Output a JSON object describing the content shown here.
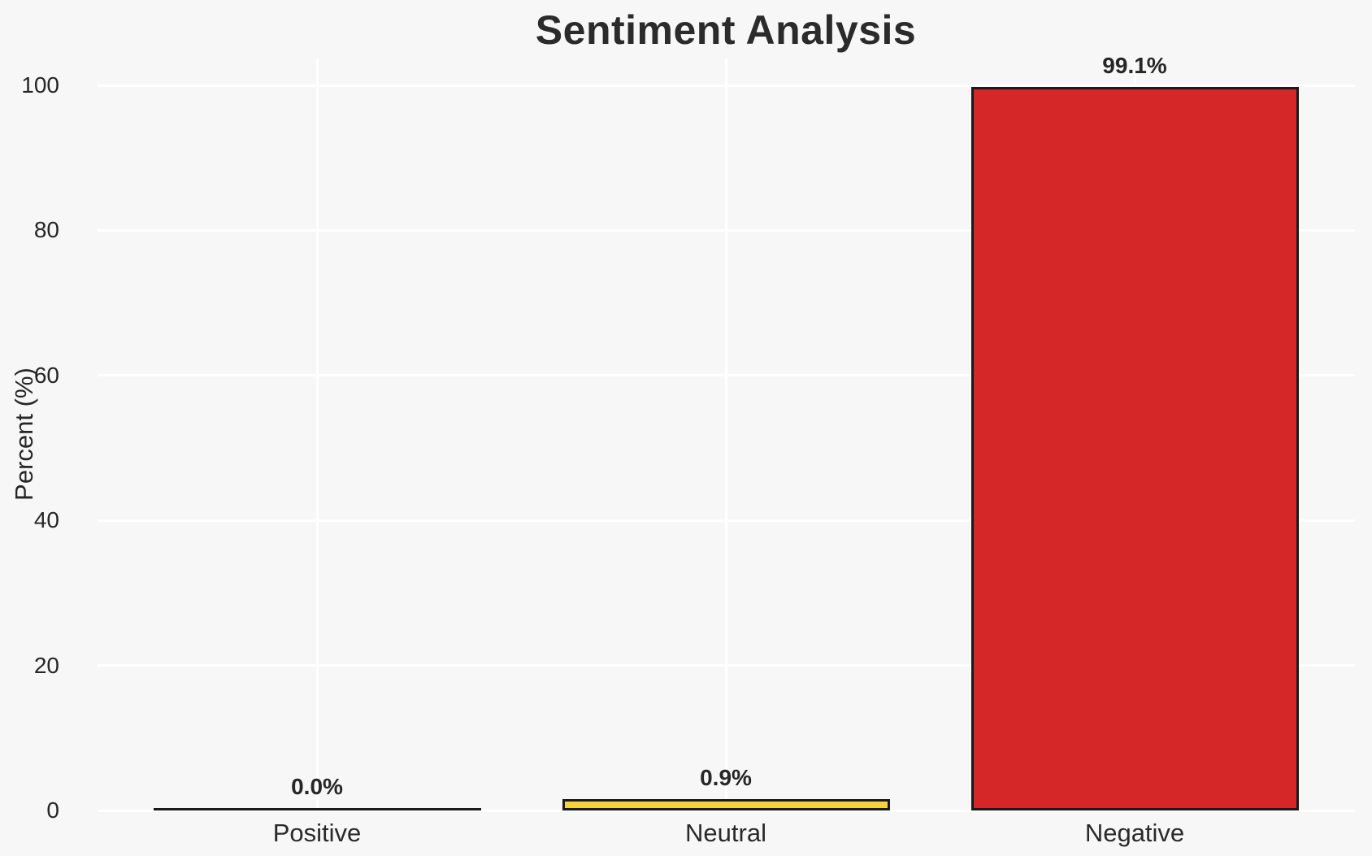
{
  "chart_data": {
    "type": "bar",
    "title": "Sentiment Analysis",
    "xlabel": "",
    "ylabel": "Percent (%)",
    "categories": [
      "Positive",
      "Neutral",
      "Negative"
    ],
    "values": [
      0.0,
      0.9,
      99.1
    ],
    "value_labels": [
      "0.0%",
      "0.9%",
      "99.1%"
    ],
    "bar_colors": [
      "#f7f7f8",
      "#f5d33f",
      "#d62728"
    ],
    "bar_edge_color": "#1a1a1a",
    "yticks": [
      0,
      20,
      40,
      60,
      80,
      100
    ],
    "ytick_labels": [
      "0",
      "20",
      "40",
      "60",
      "80",
      "100"
    ],
    "ylim": [
      0,
      103.7
    ],
    "grid": "both",
    "grid_color": "#ffffff",
    "background_color": "#f7f7f8",
    "legend": "none"
  }
}
